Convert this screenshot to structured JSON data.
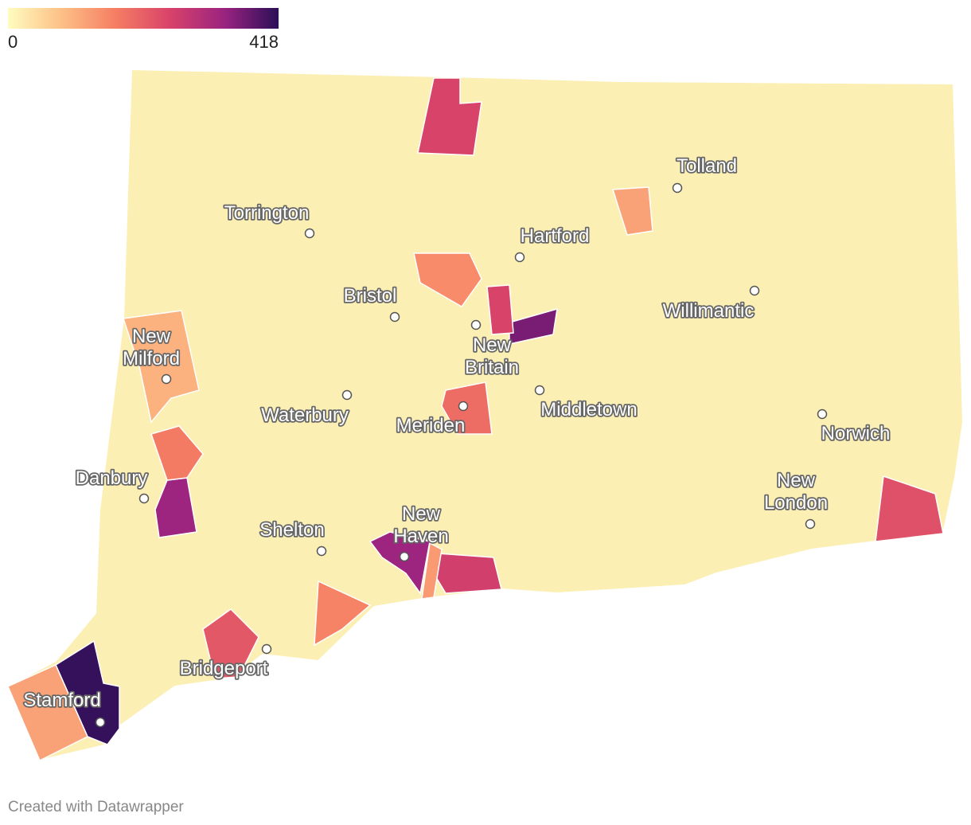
{
  "map": {
    "legend": {
      "min": 0,
      "max": 418,
      "colors": [
        "#fefcbf",
        "#fdbf86",
        "#f57d63",
        "#d8426a",
        "#9a2380",
        "#2b0f57"
      ]
    },
    "values": [
      250,
      410,
      120,
      330,
      170,
      100,
      330,
      260,
      130,
      220,
      190,
      360,
      250,
      150,
      160,
      230,
      120
    ],
    "cities": [
      {
        "lines": [
          "Tolland"
        ]
      },
      {
        "lines": [
          "Torrington"
        ]
      },
      {
        "lines": [
          "Hartford"
        ]
      },
      {
        "lines": [
          "Bristol"
        ]
      },
      {
        "lines": [
          "New",
          "Britain"
        ]
      },
      {
        "lines": [
          "Willimantic"
        ]
      },
      {
        "lines": [
          "New",
          "Milford"
        ]
      },
      {
        "lines": [
          "Waterbury"
        ]
      },
      {
        "lines": [
          "Meriden"
        ]
      },
      {
        "lines": [
          "Middletown"
        ]
      },
      {
        "lines": [
          "Norwich"
        ]
      },
      {
        "lines": [
          "Danbury"
        ]
      },
      {
        "lines": [
          "New",
          "London"
        ]
      },
      {
        "lines": [
          "New",
          "Haven"
        ]
      },
      {
        "lines": [
          "Shelton"
        ]
      },
      {
        "lines": [
          "Bridgeport"
        ]
      },
      {
        "lines": [
          "Stamford"
        ]
      }
    ],
    "footer": "Created with Datawrapper"
  }
}
